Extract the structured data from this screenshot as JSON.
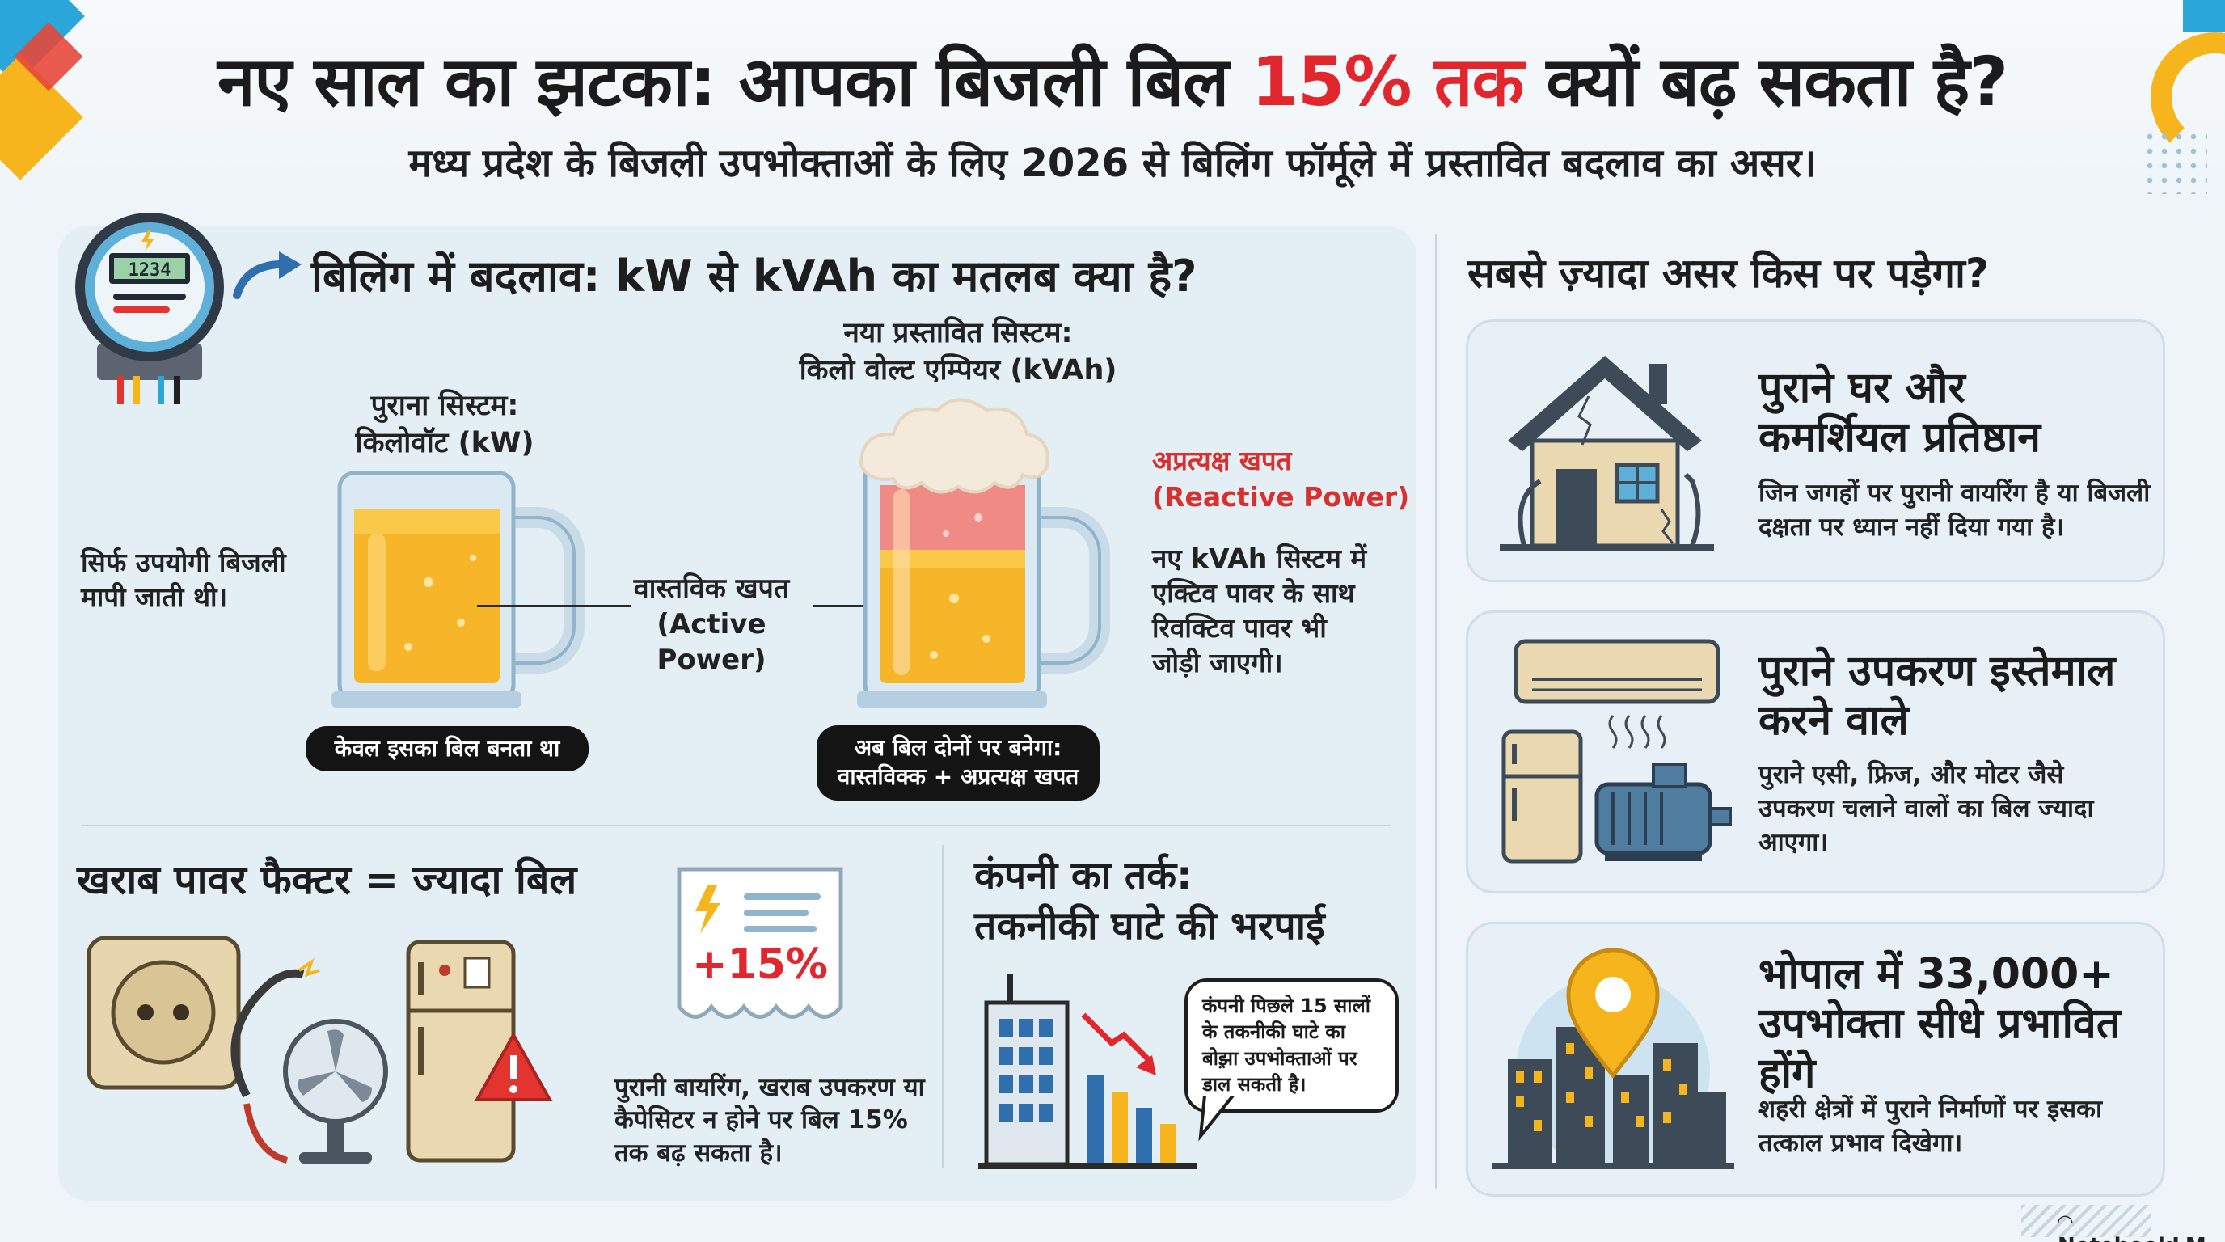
{
  "header": {
    "title_part1": "नए साल का झटका: आपका बिजली बिल ",
    "title_highlight": "15% तक",
    "title_part2": " क्यों बढ़ सकता है?",
    "subtitle": "मध्य प्रदेश के बिजली उपभोक्ताओं के लिए 2026 से बिलिंग फॉर्मूले में प्रस्तावित बदलाव का असर।"
  },
  "billing": {
    "title": "बिलिंग में बदलाव: kW से kVAh का मतलब क्या है?",
    "meter_display": "1234",
    "old_system_line1": "पुराना सिस्टम:",
    "old_system_line2": "किलोवॉट (kW)",
    "new_system_line1": "नया प्रस्तावित सिस्टम:",
    "new_system_line2": "किलो वोल्ट एम्पियर (kVAh)",
    "old_note": "सिर्फ उपयोगी बिजली मापी जाती थी।",
    "active_label_line1": "वास्तविक खपत",
    "active_label_line2": "(Active Power)",
    "reactive_label_line1": "अप्रत्यक्ष खपत",
    "reactive_label_line2": "(Reactive Power)",
    "new_note": "नए kVAh सिस्टम में एक्टिव पावर के साथ रिवक्टिव पावर भी जोड़ी जाएगी।",
    "old_pill": "केवल इसका बिल बनता था",
    "new_pill_line1": "अब बिल दोनों पर बनेगा:",
    "new_pill_line2": "वास्तविक्क + अप्रत्यक्ष खपत"
  },
  "power_factor": {
    "title": "खराब पावर फैक्टर = ज्यादा बिल",
    "doc_value": "+15%",
    "text": "पुरानी बायरिंग, खराब उपकरण या कैपेसिटर न होने पर बिल 15% तक बढ़ सकता है।"
  },
  "company": {
    "title_line1": "कंपनी का तर्क:",
    "title_line2": "तकनीकी घाटे की भरपाई",
    "speech": "कंपनी पिछले 15 सालों के तकनीकी घाटे का बोझ़ा उपभोक्ताओं पर डाल सकती है।"
  },
  "impact": {
    "title": "सबसे ज़्यादा असर किस पर पड़ेगा?",
    "cards": [
      {
        "title_line1": "पुराने घर और",
        "title_line2": "कमर्शियल प्रतिष्ठान",
        "text": "जिन जगहों पर पुरानी वायरिंग है या बिजली दक्षता पर ध्यान नहीं दिया गया है।"
      },
      {
        "title_line1": "पुराने उपकरण इस्तेमाल",
        "title_line2": "करने वाले",
        "text": "पुराने एसी, फ्रिज, और मोटर जैसे उपकरण चलाने वालों का बिल ज्यादा आएगा।"
      },
      {
        "title_line1": "भोपाल में 33,000+",
        "title_line2": "उपभोक्ता सीधे प्रभावित",
        "title_line3": "होंगे",
        "text": "शहरी क्षेत्रों में पुराने निर्माणों पर इसका तत्काल प्रभाव दिखेगा।"
      }
    ]
  },
  "footer": {
    "logo": "NotebookLM"
  },
  "colors": {
    "accent_red": "#e1262d",
    "beer": "#f7b52a",
    "foam": "#f4eadc",
    "reactive": "#f08a84"
  }
}
